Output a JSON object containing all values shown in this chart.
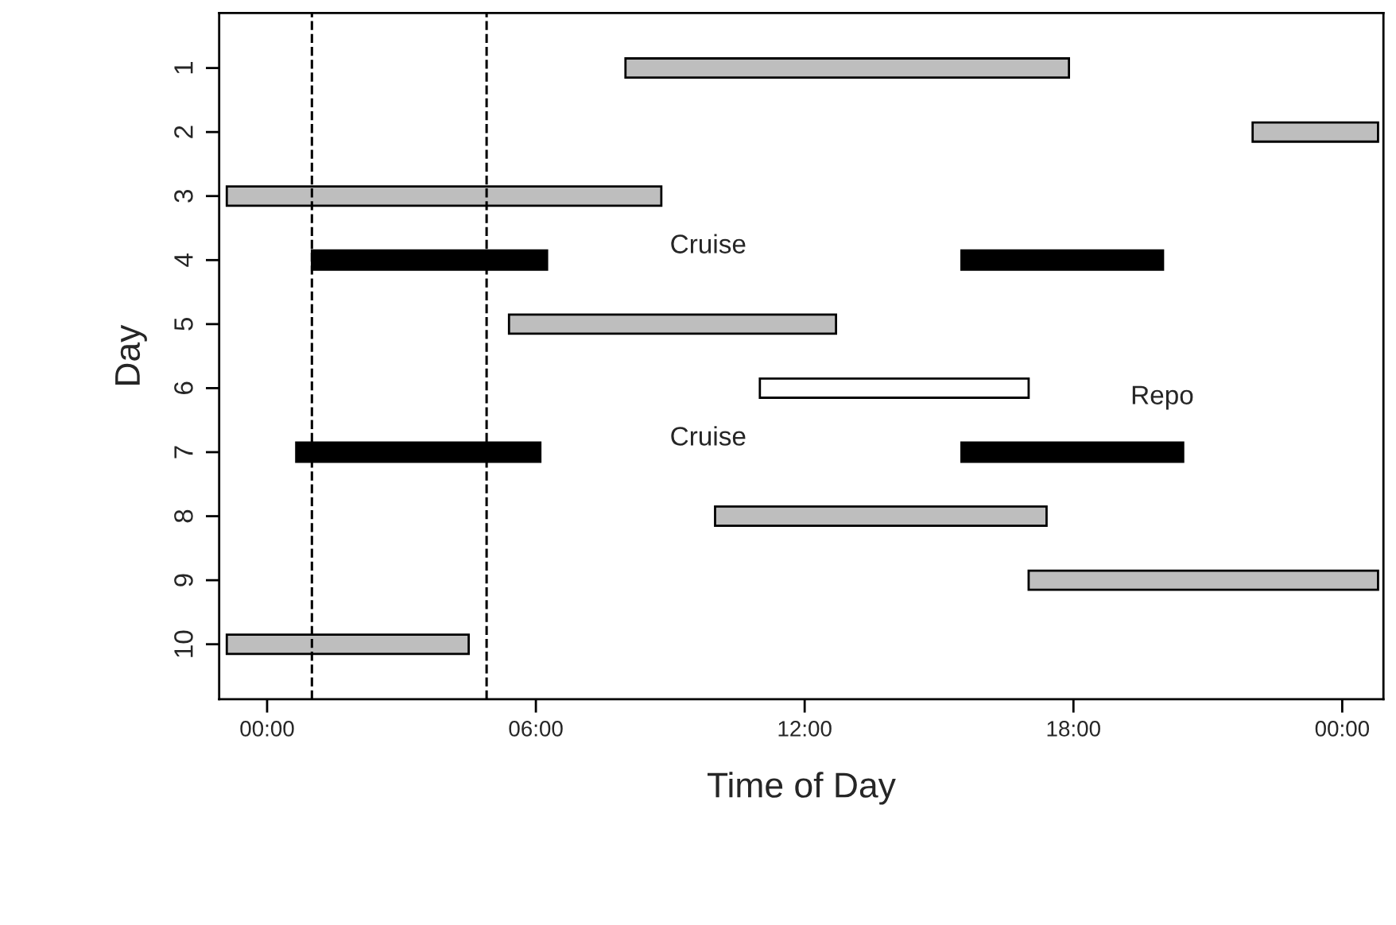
{
  "chart_data": {
    "type": "bar",
    "orientation": "horizontal",
    "xlabel": "Time of Day",
    "ylabel": "Day",
    "categories": [
      "1",
      "2",
      "3",
      "4",
      "5",
      "6",
      "7",
      "8",
      "9",
      "10"
    ],
    "series": [
      {
        "color": "#bebebe",
        "base": [
          8.0,
          22.0,
          -0.9,
          null,
          5.4,
          null,
          null,
          10.0,
          17.0,
          -0.9
        ],
        "values": [
          9.9,
          2.8,
          9.7,
          null,
          7.3,
          null,
          null,
          7.4,
          7.8,
          5.4
        ]
      },
      {
        "color": "#000000",
        "base": [
          null,
          null,
          null,
          1.0,
          null,
          null,
          0.65,
          null,
          null,
          null
        ],
        "values": [
          null,
          null,
          null,
          5.25,
          null,
          null,
          5.45,
          null,
          null,
          null
        ]
      },
      {
        "color": "#000000",
        "base": [
          null,
          null,
          null,
          15.5,
          null,
          null,
          15.5,
          null,
          null,
          null
        ],
        "values": [
          null,
          null,
          null,
          4.5,
          null,
          null,
          4.95,
          null,
          null,
          null
        ]
      },
      {
        "color": "#ffffff",
        "base": [
          null,
          null,
          null,
          null,
          null,
          11.0,
          null,
          null,
          null,
          null
        ],
        "values": [
          null,
          null,
          null,
          null,
          null,
          6.0,
          null,
          null,
          null,
          null
        ]
      }
    ],
    "xlim": [
      -1.07,
      24.92
    ],
    "xticks": [
      {
        "value": 0,
        "label": "00:00"
      },
      {
        "value": 6,
        "label": "06:00"
      },
      {
        "value": 12,
        "label": "12:00"
      },
      {
        "value": 18,
        "label": "18:00"
      },
      {
        "value": 24,
        "label": "00:00"
      }
    ],
    "ref_lines": [
      {
        "axis": "x",
        "value": 1.0,
        "label": null,
        "color": "#000000",
        "line_style": "dashed"
      },
      {
        "axis": "x",
        "value": 4.9,
        "label": null,
        "color": "#000000",
        "line_style": "dashed"
      }
    ],
    "annotations": [
      "Cruise",
      "Repo",
      "Cruise"
    ],
    "grid": false,
    "legend": false
  }
}
